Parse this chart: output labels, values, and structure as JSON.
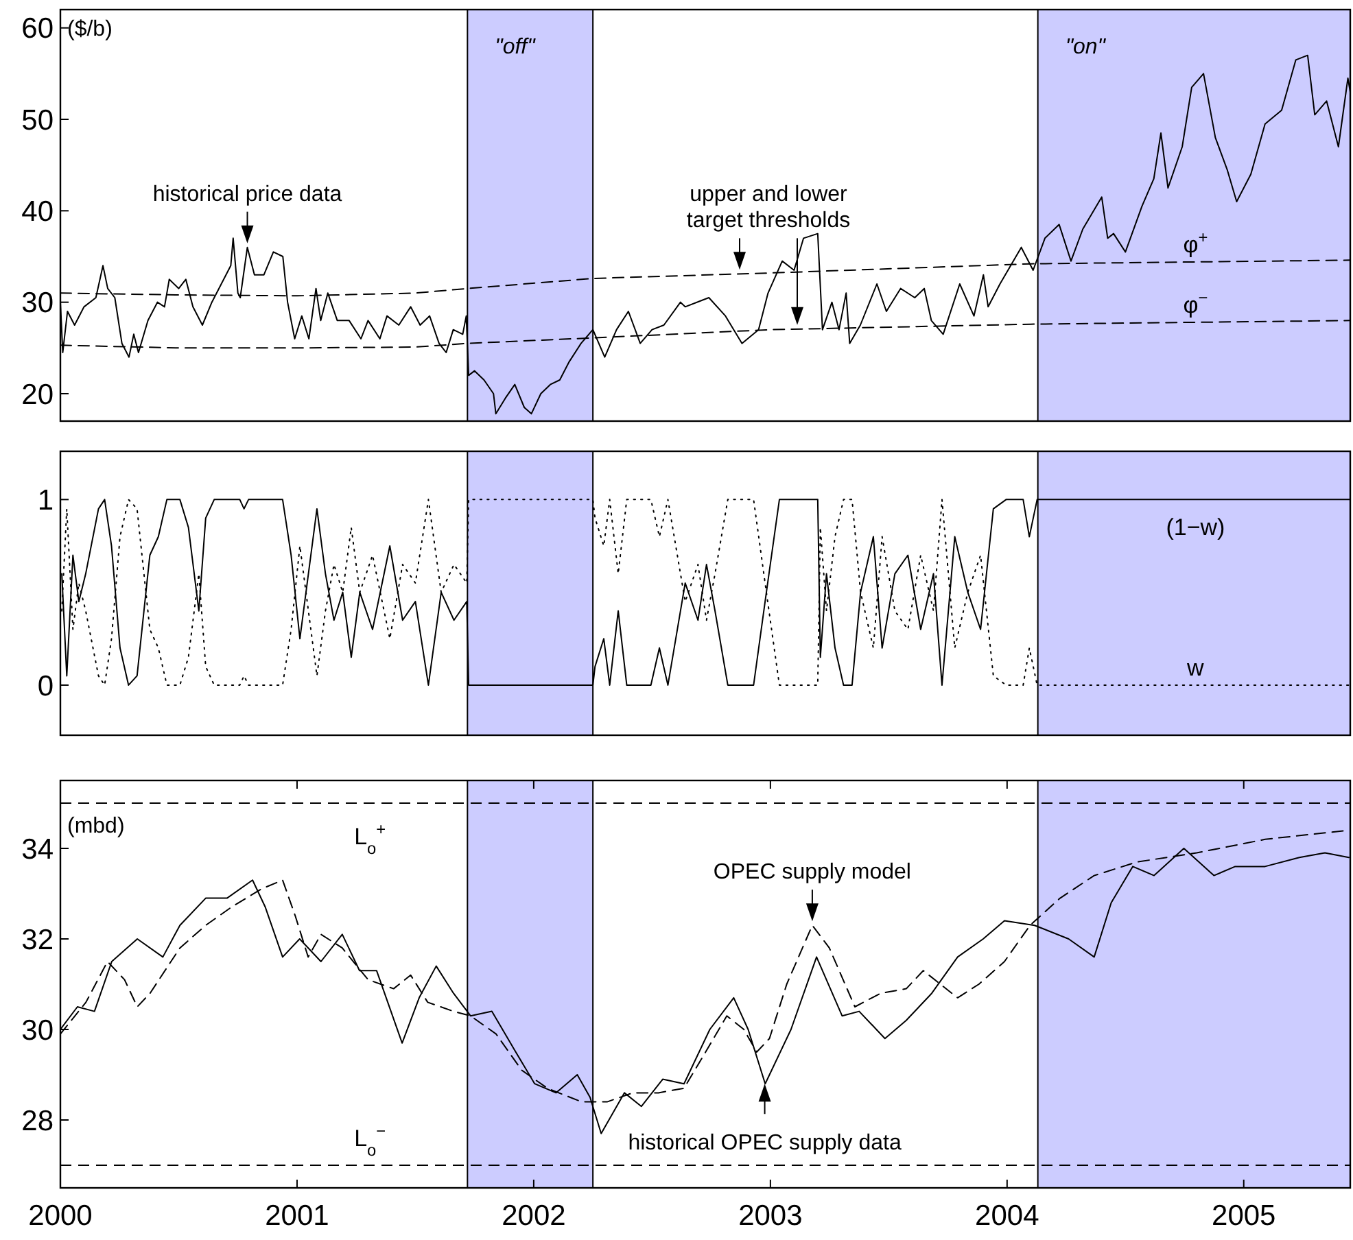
{
  "chart_data": [
    {
      "type": "line",
      "ylabel": "($/b)",
      "tick_labels": "y",
      "xlim": [
        2000,
        2005.45
      ],
      "ylim": [
        17,
        62
      ],
      "yticks": [
        20,
        30,
        40,
        50,
        60
      ],
      "bands": [
        {
          "axis": "x",
          "from": 2001.72,
          "to": 2002.25,
          "label": "\"off\"",
          "color": "#ccccff"
        },
        {
          "axis": "x",
          "from": 2004.13,
          "to": 2005.45,
          "label": "\"on\"",
          "color": "#ccccff"
        }
      ],
      "annotations": [
        {
          "text": "historical price data",
          "x": 2000.79,
          "y": 36
        },
        {
          "text": "upper and lower target thresholds",
          "x": 2002.87,
          "y": 33.1
        }
      ],
      "series": [
        {
          "color": "#000000",
          "line_style": "solid",
          "x": [
            2000.0,
            2000.01,
            2000.03,
            2000.06,
            2000.1,
            2000.15,
            2000.18,
            2000.2,
            2000.23,
            2000.26,
            2000.29,
            2000.31,
            2000.33,
            2000.37,
            2000.41,
            2000.44,
            2000.46,
            2000.5,
            2000.53,
            2000.56,
            2000.6,
            2000.64,
            2000.68,
            2000.72,
            2000.73,
            2000.75,
            2000.76,
            2000.79,
            2000.82,
            2000.86,
            2000.9,
            2000.94,
            2000.96,
            2000.99,
            2001.02,
            2001.05,
            2001.08,
            2001.1,
            2001.13,
            2001.17,
            2001.22,
            2001.27,
            2001.3,
            2001.35,
            2001.38,
            2001.43,
            2001.48,
            2001.52,
            2001.56,
            2001.6,
            2001.63,
            2001.66,
            2001.7,
            2001.715,
            2001.725,
            2001.75,
            2001.79,
            2001.83,
            2001.84,
            2001.88,
            2001.92,
            2001.96,
            2001.99,
            2002.03,
            2002.07,
            2002.11,
            2002.15,
            2002.2,
            2002.25,
            2002.3,
            2002.35,
            2002.4,
            2002.45,
            2002.5,
            2002.55,
            2002.62,
            2002.64,
            2002.74,
            2002.81,
            2002.88,
            2002.95,
            2002.99,
            2003.05,
            2003.1,
            2003.14,
            2003.2,
            2003.22,
            2003.26,
            2003.29,
            2003.32,
            2003.335,
            2003.38,
            2003.45,
            2003.49,
            2003.55,
            2003.61,
            2003.65,
            2003.68,
            2003.73,
            2003.8,
            2003.86,
            2003.9,
            2003.92,
            2003.97,
            2004.06,
            2004.11,
            2004.16,
            2004.22,
            2004.27,
            2004.32,
            2004.4,
            2004.425,
            2004.45,
            2004.5,
            2004.57,
            2004.62,
            2004.65,
            2004.68,
            2004.74,
            2004.78,
            2004.83,
            2004.88,
            2004.93,
            2004.97,
            2005.03,
            2005.09,
            2005.16,
            2005.22,
            2005.27,
            2005.3,
            2005.35,
            2005.4,
            2005.44,
            2005.45
          ],
          "values": [
            30,
            24.5,
            29,
            27.5,
            29.5,
            30.5,
            34,
            31.5,
            30.5,
            25.5,
            24,
            26.5,
            24.5,
            28,
            30,
            29.5,
            32.5,
            31.5,
            32.5,
            29.5,
            27.5,
            30,
            32,
            34,
            37,
            31,
            30.5,
            36,
            33,
            33,
            35.5,
            35,
            30,
            26,
            28.5,
            26,
            31.5,
            28,
            31,
            28,
            28,
            26,
            28,
            26,
            28.5,
            27.5,
            29.5,
            27.5,
            28.5,
            25.5,
            24.5,
            27,
            26.5,
            28.5,
            22,
            22.5,
            21.5,
            20,
            17.8,
            19.5,
            21,
            18.5,
            17.8,
            20,
            21,
            21.5,
            23.5,
            25.5,
            27,
            24,
            27,
            29,
            25.5,
            27,
            27.5,
            30,
            29.5,
            30.5,
            28.5,
            25.5,
            27,
            31,
            34.5,
            33.5,
            37,
            37.5,
            27,
            30,
            27,
            31,
            25.5,
            27.5,
            32,
            29,
            31.5,
            30.5,
            31.5,
            28,
            26.5,
            32,
            28.5,
            33,
            29.5,
            32,
            36,
            33.5,
            37,
            38.5,
            34.5,
            38,
            41.5,
            37,
            37.5,
            35.5,
            40.5,
            43.5,
            48.5,
            42.5,
            47,
            53.5,
            55,
            48,
            44.5,
            41,
            44,
            49.5,
            51,
            56.5,
            57,
            50.5,
            52,
            47,
            54.5,
            53
          ]
        },
        {
          "name": "φ$^{+}$",
          "color": "#000000",
          "line_style": "dashed",
          "x": [
            2000,
            2000.5,
            2001,
            2001.5,
            2001.72,
            2002.25,
            2003,
            2004.1,
            2005.45
          ],
          "values": [
            31,
            30.8,
            30.7,
            31,
            31.5,
            32.6,
            33.2,
            34.2,
            34.6
          ]
        },
        {
          "name": "φ$^{−}$",
          "color": "#000000",
          "line_style": "dashed",
          "x": [
            2000,
            2000.5,
            2001,
            2001.5,
            2001.72,
            2002.25,
            2003,
            2004.1,
            2005.45
          ],
          "values": [
            25.3,
            25,
            25,
            25.1,
            25.5,
            26.1,
            27,
            27.6,
            28
          ]
        }
      ]
    },
    {
      "type": "line",
      "tick_labels": "y",
      "xlim": [
        2000,
        2005.45
      ],
      "ylim": [
        -0.27,
        1.26
      ],
      "yticks": [
        0,
        1
      ],
      "bands": [
        {
          "axis": "x",
          "from": 2001.72,
          "to": 2002.25,
          "color": "#ccccff"
        },
        {
          "axis": "x",
          "from": 2004.13,
          "to": 2005.45,
          "color": "#ccccff"
        }
      ],
      "x": [
        2000.006,
        2000.027,
        2000.053,
        2000.078,
        2000.107,
        2000.161,
        2000.187,
        2000.216,
        2000.252,
        2000.288,
        2000.324,
        2000.378,
        2000.414,
        2000.45,
        2000.505,
        2000.541,
        2000.585,
        2000.614,
        2000.65,
        2000.758,
        2000.776,
        2000.795,
        2000.939,
        2000.975,
        2001.012,
        2001.048,
        2001.084,
        2001.12,
        2001.156,
        2001.193,
        2001.229,
        2001.265,
        2001.319,
        2001.392,
        2001.446,
        2001.5,
        2001.555,
        2001.609,
        2001.663,
        2001.717,
        2001.725,
        2002.25,
        2002.259,
        2002.296,
        2002.321,
        2002.357,
        2002.393,
        2002.495,
        2002.531,
        2002.567,
        2002.64,
        2002.694,
        2002.73,
        2002.766,
        2002.82,
        2002.929,
        2002.983,
        2003.038,
        2003.2,
        2003.211,
        2003.237,
        2003.273,
        2003.309,
        2003.345,
        2003.381,
        2003.435,
        2003.472,
        2003.526,
        2003.581,
        2003.635,
        2003.689,
        2003.725,
        2003.779,
        2003.834,
        2003.888,
        2003.942,
        2003.996,
        2004.068,
        2004.094,
        2004.127,
        2005.45
      ],
      "series": [
        {
          "name": "(1−w)",
          "color": "#000000",
          "line_style": "solid",
          "values": [
            0.6,
            0.05,
            0.7,
            0.45,
            0.6,
            0.95,
            1,
            0.75,
            0.2,
            0,
            0.05,
            0.7,
            0.8,
            1,
            1,
            0.85,
            0.4,
            0.9,
            1,
            1,
            0.95,
            1,
            1,
            0.7,
            0.25,
            0.6,
            0.95,
            0.6,
            0.35,
            0.5,
            0.15,
            0.5,
            0.3,
            0.75,
            0.35,
            0.45,
            0,
            0.5,
            0.35,
            0.45,
            0,
            0,
            0.1,
            0.25,
            0,
            0.4,
            0,
            0,
            0.2,
            0,
            0.55,
            0.35,
            0.65,
            0.4,
            0,
            0,
            0.5,
            1,
            1,
            0.15,
            0.6,
            0.2,
            0,
            0,
            0.5,
            0.8,
            0.2,
            0.6,
            0.7,
            0.3,
            0.6,
            0,
            0.8,
            0.5,
            0.3,
            0.95,
            1,
            1,
            0.8,
            1,
            1
          ]
        },
        {
          "name": "w",
          "color": "#000000",
          "line_style": "dotted",
          "values": [
            0.4,
            0.95,
            0.3,
            0.55,
            0.4,
            0.05,
            0,
            0.25,
            0.8,
            1,
            0.95,
            0.3,
            0.2,
            0,
            0,
            0.15,
            0.6,
            0.1,
            0,
            0,
            0.05,
            0,
            0,
            0.3,
            0.75,
            0.4,
            0.05,
            0.4,
            0.65,
            0.5,
            0.85,
            0.5,
            0.7,
            0.25,
            0.65,
            0.55,
            1,
            0.5,
            0.65,
            0.55,
            1,
            1,
            0.9,
            0.75,
            1,
            0.6,
            1,
            1,
            0.8,
            1,
            0.45,
            0.65,
            0.35,
            0.6,
            1,
            1,
            0.5,
            0,
            0,
            0.85,
            0.4,
            0.8,
            1,
            1,
            0.5,
            0.2,
            0.8,
            0.4,
            0.3,
            0.7,
            0.4,
            1,
            0.2,
            0.5,
            0.7,
            0.05,
            0,
            0,
            0.2,
            0,
            0
          ]
        }
      ]
    },
    {
      "type": "line",
      "ylabel": "(mbd)",
      "xlim": [
        2000,
        2005.45
      ],
      "ylim": [
        26.5,
        35.5
      ],
      "yticks": [
        28,
        30,
        32,
        34
      ],
      "xticks": [
        2000,
        2001,
        2002,
        2003,
        2004,
        2005
      ],
      "bands": [
        {
          "axis": "x",
          "from": 2001.72,
          "to": 2002.25,
          "color": "#ccccff"
        },
        {
          "axis": "x",
          "from": 2004.13,
          "to": 2005.45,
          "color": "#ccccff"
        }
      ],
      "ref_lines": [
        {
          "axis": "y",
          "value": 35,
          "label": "L$_{o}$$^{+}$",
          "line_style": "dashed"
        },
        {
          "axis": "y",
          "value": 27,
          "label": "L$_{o}$$^{−}$",
          "line_style": "dashed"
        }
      ],
      "annotations": [
        {
          "text": "OPEC supply model",
          "x": 2003.177,
          "y": 32.3
        },
        {
          "text": "historical OPEC supply data",
          "x": 2002.976,
          "y": 28.86
        }
      ],
      "series": [
        {
          "color": "#000000",
          "line_style": "solid",
          "x": [
            2000,
            2000.072,
            2000.144,
            2000.217,
            2000.325,
            2000.433,
            2000.505,
            2000.614,
            2000.704,
            2000.812,
            2000.866,
            2000.939,
            2001.011,
            2001.101,
            2001.191,
            2001.264,
            2001.336,
            2001.444,
            2001.516,
            2001.588,
            2001.661,
            2001.733,
            2001.823,
            2001.913,
            2002.004,
            2002.094,
            2002.184,
            2002.238,
            2002.285,
            2002.383,
            2002.455,
            2002.545,
            2002.635,
            2002.744,
            2002.845,
            2002.906,
            2002.978,
            2003.087,
            2003.195,
            2003.303,
            2003.375,
            2003.484,
            2003.574,
            2003.682,
            2003.791,
            2003.899,
            2003.989,
            2004.116,
            2004.26,
            2004.368,
            2004.44,
            2004.531,
            2004.621,
            2004.747,
            2004.874,
            2004.964,
            2005.09,
            2005.235,
            2005.343,
            2005.444
          ],
          "values": [
            30,
            30.5,
            30.4,
            31.5,
            32,
            31.6,
            32.3,
            32.9,
            32.9,
            33.3,
            32.7,
            31.6,
            32,
            31.5,
            32.1,
            31.3,
            31.3,
            29.7,
            30.7,
            31.4,
            30.8,
            30.3,
            30.4,
            29.6,
            28.8,
            28.6,
            29,
            28.5,
            27.7,
            28.6,
            28.3,
            28.9,
            28.8,
            30,
            30.7,
            30,
            28.8,
            30,
            31.6,
            30.3,
            30.4,
            29.8,
            30.2,
            30.8,
            31.6,
            32,
            32.4,
            32.3,
            32,
            31.6,
            32.8,
            33.6,
            33.4,
            34,
            33.4,
            33.6,
            33.6,
            33.8,
            33.9,
            33.8
          ]
        },
        {
          "color": "#000000",
          "line_style": "dashed",
          "x": [
            2000,
            2000.108,
            2000.199,
            2000.271,
            2000.325,
            2000.379,
            2000.505,
            2000.614,
            2000.722,
            2000.848,
            2000.939,
            2000.993,
            2001.047,
            2001.101,
            2001.191,
            2001.3,
            2001.408,
            2001.48,
            2001.552,
            2001.661,
            2001.733,
            2001.841,
            2001.949,
            2002.058,
            2002.202,
            2002.31,
            2002.419,
            2002.527,
            2002.635,
            2002.726,
            2002.816,
            2002.888,
            2002.942,
            2002.996,
            2003.069,
            2003.177,
            2003.249,
            2003.357,
            2003.466,
            2003.574,
            2003.646,
            2003.718,
            2003.791,
            2003.881,
            2003.989,
            2004.097,
            2004.224,
            2004.368,
            2004.549,
            2004.801,
            2005.09,
            2005.444
          ],
          "values": [
            29.9,
            30.6,
            31.5,
            31.1,
            30.5,
            30.8,
            31.8,
            32.3,
            32.7,
            33.1,
            33.3,
            32.5,
            31.6,
            32.1,
            31.8,
            31.1,
            30.9,
            31.2,
            30.6,
            30.4,
            30.3,
            29.9,
            29.1,
            28.7,
            28.4,
            28.4,
            28.6,
            28.6,
            28.7,
            29.5,
            30.3,
            30,
            29.5,
            29.8,
            31,
            32.3,
            31.8,
            30.5,
            30.8,
            30.9,
            31.3,
            31,
            30.7,
            31,
            31.5,
            32.3,
            32.9,
            33.4,
            33.7,
            33.9,
            34.2,
            34.4
          ]
        }
      ]
    }
  ]
}
